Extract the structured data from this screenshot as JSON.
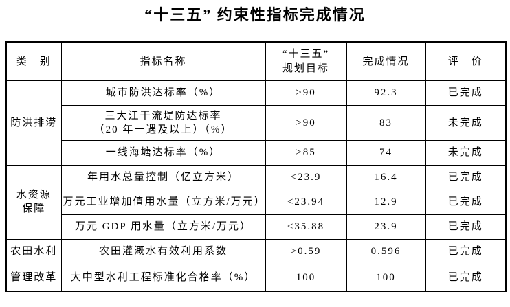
{
  "page": {
    "title": "“十三五” 约束性指标完成情况"
  },
  "table": {
    "headers": {
      "category": "类　别",
      "indicator": "指标名称",
      "target": "“十三五”\n规划目标",
      "completion": "完成情况",
      "evaluation": "评　价"
    },
    "groups": [
      {
        "category": "防洪排涝",
        "rows": [
          {
            "indicator": "城市防洪达标率（%）",
            "target": ">90",
            "completion": "92.3",
            "evaluation": "已完成"
          },
          {
            "indicator": "三大江干流堤防达标率\n（20 年一遇及以上）（%）",
            "target": ">90",
            "completion": "83",
            "evaluation": "未完成"
          },
          {
            "indicator": "一线海塘达标率（%）",
            "target": ">85",
            "completion": "74",
            "evaluation": "未完成"
          }
        ]
      },
      {
        "category": "水资源\n保障",
        "rows": [
          {
            "indicator": "年用水总量控制（亿立方米）",
            "target": "<23.9",
            "completion": "16.4",
            "evaluation": "已完成"
          },
          {
            "indicator": "万元工业增加值用水量（立方米/万元）",
            "target": "<23.94",
            "completion": "12.9",
            "evaluation": "已完成"
          },
          {
            "indicator": "万元 GDP 用水量（立方米/万元）",
            "target": "<35.88",
            "completion": "23.9",
            "evaluation": "已完成"
          }
        ]
      },
      {
        "category": "农田水利",
        "rows": [
          {
            "indicator": "农田灌溉水有效利用系数",
            "target": ">0.59",
            "completion": "0.596",
            "evaluation": "已完成"
          }
        ]
      },
      {
        "category": "管理改革",
        "rows": [
          {
            "indicator": "大中型水利工程标准化合格率（%）",
            "target": "100",
            "completion": "100",
            "evaluation": "已完成"
          }
        ]
      }
    ]
  }
}
